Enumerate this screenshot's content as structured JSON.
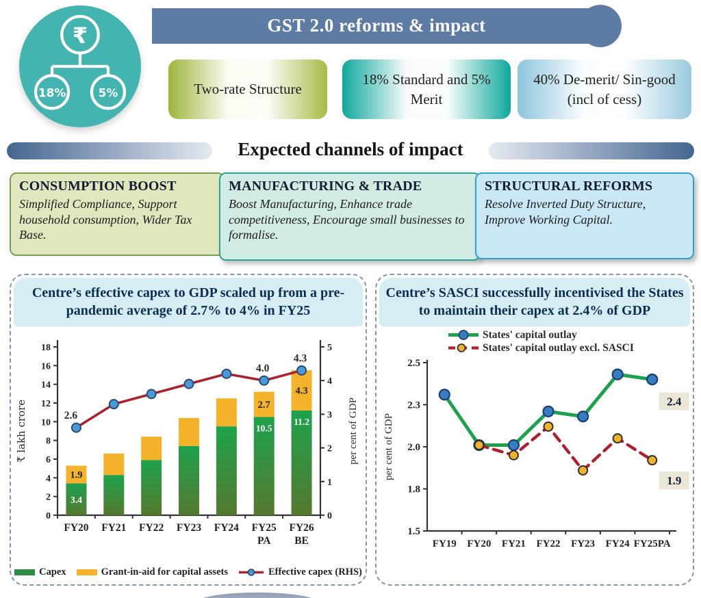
{
  "header": {
    "title": "GST 2.0 reforms & impact",
    "bar_color": "#5e7ba3",
    "text_color": "#ffffff"
  },
  "tax_icon": {
    "circle_color": "#43b4af",
    "rupee_symbol": "₹",
    "left_rate": "18%",
    "right_rate": "5%"
  },
  "rate_pills": [
    {
      "label": "Two-rate Structure",
      "edge_color": "#9db63c"
    },
    {
      "label": "18% Standard and 5% Merit",
      "edge_color": "#0ea89c"
    },
    {
      "label": "40% De-merit/ Sin-good (incl of cess)",
      "edge_color": "#8ec5dc"
    }
  ],
  "channels": {
    "title": "Expected channels of impact",
    "bar_color": "#45668e",
    "boxes": [
      {
        "title": "CONSUMPTION BOOST",
        "body": "Simplified Compliance, Support household consumption, Wider Tax Base.",
        "bg": "#e0e6bd",
        "border": "#6fa24b"
      },
      {
        "title": "MANUFACTURING & TRADE",
        "body": "Boost Manufacturing, Enhance trade competitiveness, Encourage small businesses to formalise.",
        "bg": "#d2ebe4",
        "border": "#2aa396"
      },
      {
        "title": "STRUCTURAL REFORMS",
        "body": "Resolve Inverted Duty Structure, Improve Working Capital.",
        "bg": "#c9e7f4",
        "border": "#2aa3cf"
      }
    ]
  },
  "chart_data": [
    {
      "type": "bar+line",
      "title": "Centre’s effective capex to GDP scaled up from a pre-pandemic average of 2.7% to 4% in FY25",
      "categories": [
        "FY20",
        "FY21",
        "FY22",
        "FY23",
        "FY24",
        "FY25 PA",
        "FY26 BE"
      ],
      "series": [
        {
          "name": "Capex",
          "type": "bar",
          "colors": [
            "#1ea24c",
            "#55792f"
          ],
          "values": [
            3.4,
            4.3,
            5.9,
            7.4,
            9.5,
            10.5,
            11.2
          ]
        },
        {
          "name": "Grant-in-aid for capital assets",
          "type": "bar",
          "color": "#f5b32b",
          "values": [
            1.9,
            2.3,
            2.5,
            3.0,
            3.0,
            2.7,
            4.3
          ]
        },
        {
          "name": "Effective capex (RHS)",
          "type": "line",
          "axis": "right",
          "color": "#a8232f",
          "marker_color": "#4a9ad4",
          "values": [
            2.6,
            3.3,
            3.6,
            3.9,
            4.2,
            4.0,
            4.3
          ]
        }
      ],
      "bar_value_labels": {
        "capex": {
          "0": "3.4",
          "5": "10.5",
          "6": "11.2"
        },
        "grant": {
          "0": "1.9",
          "5": "2.7",
          "6": "4.3"
        }
      },
      "line_point_labels": {
        "0": "2.6",
        "5": "4.0",
        "6": "4.3"
      },
      "ylabel_left": "₹ lakh crore",
      "ylabel_right": "per cent of GDP",
      "ylim_left": [
        0,
        18
      ],
      "yticks_left": [
        "0",
        "2",
        "4",
        "6",
        "8",
        "10",
        "12",
        "14",
        "16",
        "18"
      ],
      "ylim_right": [
        0,
        5
      ],
      "yticks_right": [
        "0",
        "1",
        "2",
        "3",
        "4",
        "5"
      ],
      "legend_position": "bottom"
    },
    {
      "type": "line",
      "title": "Centre’s SASCI successfully incentivised the States to maintain their capex at 2.4% of GDP",
      "categories": [
        "FY19",
        "FY20",
        "FY21",
        "FY22",
        "FY23",
        "FY24",
        "FY25PA"
      ],
      "series": [
        {
          "name": "States' capital outlay",
          "style": "solid",
          "color": "#1ca24e",
          "marker_color": "#3a7cc3",
          "values": [
            2.31,
            2.01,
            2.01,
            2.21,
            2.18,
            2.43,
            2.4
          ]
        },
        {
          "name": "States' capital outlay excl. SASCI",
          "style": "dashed",
          "color": "#b01f2e",
          "marker_color": "#eeb22c",
          "values": [
            null,
            2.01,
            1.95,
            2.12,
            1.86,
            2.05,
            1.92
          ]
        }
      ],
      "ylabel": "per cent of GDP",
      "ylim": [
        1.5,
        2.5
      ],
      "yticks": [
        {
          "value": 2.5,
          "label": "2.5"
        },
        {
          "value": 2.25,
          "label": "2.3"
        },
        {
          "value": 2.0,
          "label": "2.0"
        },
        {
          "value": 1.75,
          "label": "1.8"
        },
        {
          "value": 1.5,
          "label": "1.5"
        }
      ],
      "annotations": [
        {
          "text": "2.4",
          "series": 0,
          "bg": "#ece6d6"
        },
        {
          "text": "1.9",
          "series": 1,
          "bg": "#ece6d6"
        }
      ],
      "legend_position": "top"
    }
  ]
}
